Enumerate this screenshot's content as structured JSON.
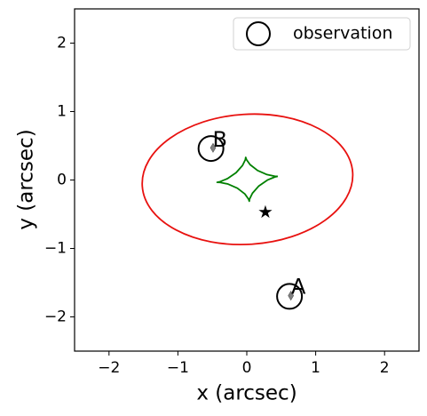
{
  "chart_data": {
    "type": "scatter",
    "xlabel": "x (arcsec)",
    "ylabel": "y (arcsec)",
    "xlim": [
      -2.5,
      2.5
    ],
    "ylim": [
      -2.5,
      2.5
    ],
    "xticks": [
      {
        "value": -2,
        "label": "−2"
      },
      {
        "value": -1,
        "label": "−1"
      },
      0,
      1,
      2
    ],
    "yticks": [
      {
        "value": -2,
        "label": "−2"
      },
      {
        "value": -1,
        "label": "−1"
      },
      0,
      1,
      2
    ],
    "legend": "upper right",
    "observations": {
      "name": "observation",
      "color": "#000000",
      "x": [
        0.62,
        -0.52
      ],
      "y": [
        -1.7,
        0.46
      ]
    },
    "annotations": [
      {
        "text": "A",
        "x": 0.75,
        "y": -1.57
      },
      {
        "text": "B",
        "x": -0.39,
        "y": 0.58
      }
    ],
    "images": {
      "color": "#808080",
      "x": [
        0.64,
        -0.49
      ],
      "y": [
        -1.69,
        0.47
      ]
    },
    "source": {
      "color": "#000000",
      "x": [
        0.27
      ],
      "y": [
        -0.47
      ]
    },
    "critical_curve": {
      "color": "#e8110f",
      "x": [
        1.537,
        1.397,
        1.046,
        0.538,
        -0.052,
        -0.632,
        -1.114,
        -1.425,
        -1.517,
        -1.377,
        -1.026,
        -0.518,
        0.072,
        0.652,
        1.134,
        1.445
      ],
      "y": [
        0.11,
        0.465,
        0.75,
        0.924,
        0.958,
        0.848,
        0.61,
        0.281,
        -0.09,
        -0.445,
        -0.73,
        -0.904,
        -0.938,
        -0.828,
        -0.59,
        -0.261
      ]
    },
    "caustic": {
      "color": "#008000",
      "x": [
        0.45,
        0.406,
        0.293,
        0.157,
        0.048,
        -0.005,
        -0.016,
        -0.021,
        -0.062,
        -0.155,
        -0.279,
        -0.386,
        -0.43,
        -0.386,
        -0.273,
        -0.137,
        -0.028,
        0.025,
        0.036,
        0.041,
        0.082,
        0.175,
        0.299,
        0.406,
        0.45
      ],
      "y": [
        0.054,
        0.055,
        0.079,
        0.139,
        0.224,
        0.299,
        0.33,
        0.297,
        0.213,
        0.107,
        0.021,
        -0.024,
        -0.034,
        -0.035,
        -0.059,
        -0.119,
        -0.204,
        -0.279,
        -0.31,
        -0.277,
        -0.193,
        -0.087,
        -0.001,
        0.044,
        0.054
      ]
    }
  }
}
